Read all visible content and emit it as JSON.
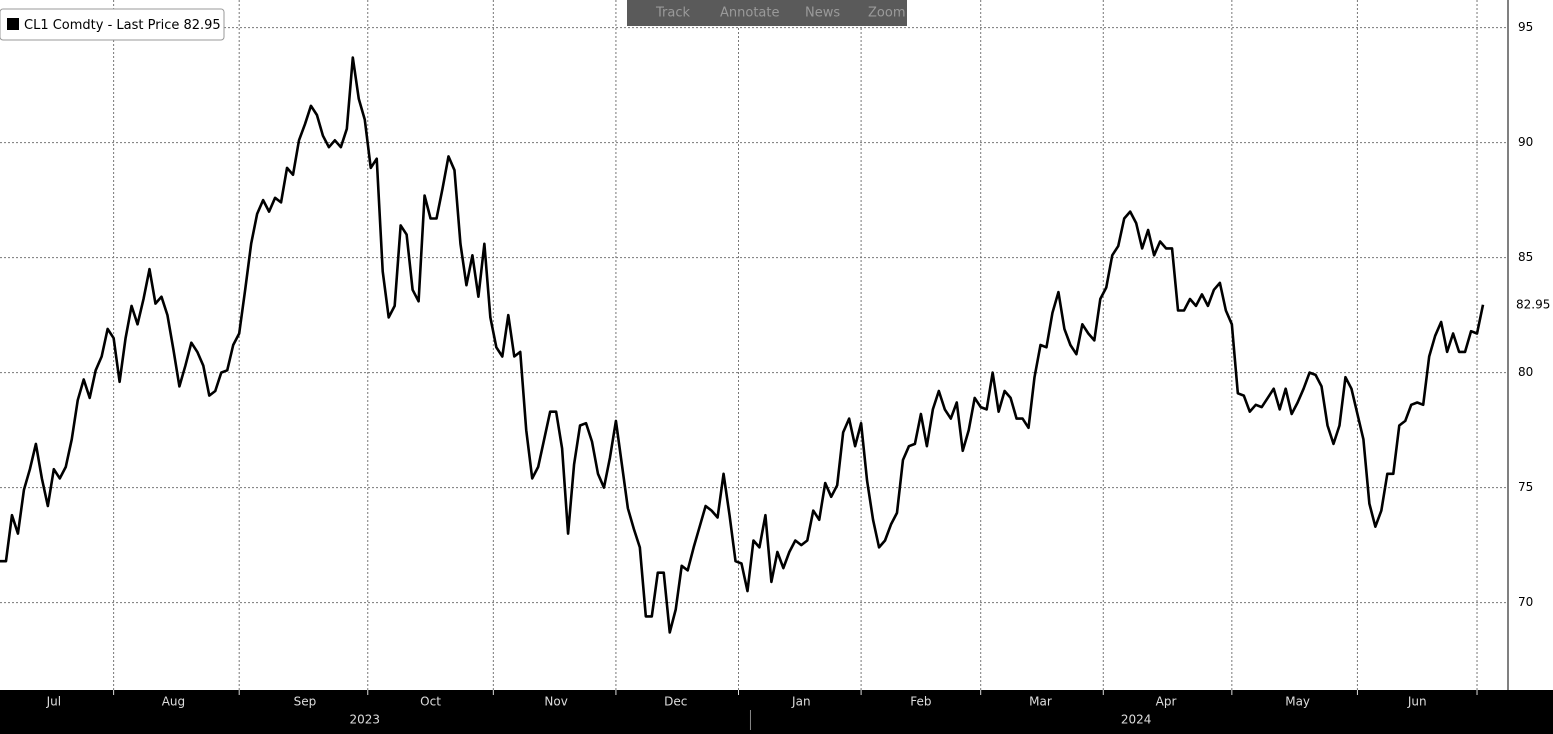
{
  "toolbar": [
    "Track",
    "Annotate",
    "News",
    "Zoom"
  ],
  "chart_data": {
    "type": "line",
    "categories": [
      null,
      null,
      null,
      null,
      null,
      null,
      null,
      null,
      null,
      "Jul",
      null,
      null,
      null,
      null,
      null,
      null,
      null,
      null,
      null,
      null,
      null,
      null,
      null,
      null,
      null,
      null,
      null,
      null,
      null,
      "Aug",
      null,
      null,
      null,
      null,
      null,
      null,
      null,
      null,
      null,
      null,
      null,
      null,
      null,
      null,
      null,
      null,
      null,
      null,
      null,
      null,
      null,
      "Sep",
      null,
      null,
      null,
      null,
      null,
      null,
      null,
      null,
      null,
      null,
      null,
      null,
      null,
      null,
      null,
      null,
      null,
      null,
      null,
      null,
      "Oct",
      null,
      null,
      null,
      null,
      null,
      null,
      null,
      null,
      null,
      null,
      null,
      null,
      null,
      null,
      null,
      null,
      null,
      null,
      null,
      null,
      "Nov",
      null,
      null,
      null,
      null,
      null,
      null,
      null,
      null,
      null,
      null,
      null,
      null,
      null,
      null,
      null,
      null,
      null,
      null,
      null,
      "Dec",
      null,
      null,
      null,
      null,
      null,
      null,
      null,
      null,
      null,
      null,
      null,
      null,
      null,
      null,
      null,
      null,
      null,
      null,
      null,
      null,
      "Jan",
      null,
      null,
      null,
      null,
      null,
      null,
      null,
      null,
      null,
      null,
      null,
      null,
      null,
      null,
      null,
      null,
      null,
      null,
      null,
      "Feb",
      null,
      null,
      null,
      null,
      null,
      null,
      null,
      null,
      null,
      null,
      null,
      null,
      null,
      null,
      null,
      null,
      null,
      null,
      null,
      "Mar",
      null,
      null,
      null,
      null,
      null,
      null,
      null,
      null,
      null,
      null,
      null,
      null,
      null,
      null,
      null,
      null,
      null,
      null,
      null,
      null,
      "Apr",
      null,
      null,
      null,
      null,
      null,
      null,
      null,
      null,
      null,
      null,
      null,
      null,
      null,
      null,
      null,
      null,
      null,
      null,
      null,
      null,
      null,
      "May",
      null,
      null,
      null,
      null,
      null,
      null,
      null,
      null,
      null,
      null,
      null,
      null,
      null,
      null,
      null,
      null,
      null,
      null,
      null,
      "Jun",
      null,
      null,
      null,
      null,
      null,
      null,
      null,
      null,
      null,
      null,
      null
    ],
    "years": [
      null,
      null,
      null,
      null,
      null,
      null,
      null,
      null,
      null,
      null,
      null,
      null,
      null,
      null,
      null,
      null,
      null,
      null,
      null,
      null,
      null,
      null,
      null,
      null,
      null,
      null,
      null,
      null,
      null,
      null,
      null,
      null,
      null,
      null,
      null,
      null,
      null,
      null,
      null,
      null,
      null,
      null,
      null,
      null,
      null,
      null,
      null,
      null,
      null,
      null,
      null,
      null,
      null,
      null,
      null,
      null,
      null,
      null,
      null,
      null,
      null,
      "2023",
      null,
      null,
      null,
      null,
      null,
      null,
      null,
      null,
      null,
      null,
      null,
      null,
      null,
      null,
      null,
      null,
      null,
      null,
      null,
      null,
      null,
      null,
      null,
      null,
      null,
      null,
      null,
      null,
      null,
      null,
      null,
      null,
      null,
      null,
      null,
      null,
      null,
      null,
      null,
      null,
      null,
      null,
      null,
      null,
      null,
      null,
      null,
      null,
      null,
      null,
      null,
      null,
      null,
      null,
      null,
      null,
      null,
      null,
      null,
      null,
      null,
      null,
      null,
      null,
      null,
      null,
      null,
      null,
      null,
      null,
      null,
      null,
      null,
      null,
      null,
      null,
      null,
      null,
      null,
      null,
      null,
      null,
      null,
      null,
      null,
      null,
      null,
      null,
      null,
      null,
      null,
      null,
      null,
      null,
      null,
      null,
      null,
      null,
      null,
      null,
      null,
      null,
      null,
      null,
      null,
      null,
      null,
      null,
      null,
      null,
      null,
      null,
      null,
      null,
      null,
      null,
      null,
      null,
      null,
      null,
      null,
      null,
      null,
      null,
      null,
      null,
      null,
      null,
      "2024",
      null,
      null,
      null,
      null,
      null,
      null,
      null,
      null,
      null,
      null,
      null,
      null,
      null,
      null,
      null,
      null,
      null,
      null,
      null,
      null,
      null,
      null,
      null,
      null,
      null,
      null,
      null,
      null,
      null,
      null,
      null,
      null,
      null,
      null,
      null,
      null,
      null,
      null,
      null,
      null,
      null,
      null,
      null,
      null,
      null,
      null,
      null,
      null,
      null,
      null,
      null,
      null,
      null,
      null,
      null,
      null,
      null,
      null,
      null,
      null,
      null
    ],
    "series": [
      {
        "name": "CL1 Comdty - Last Price",
        "color": "#000000",
        "values": [
          71.8,
          71.8,
          73.8,
          73.0,
          74.9,
          75.8,
          76.9,
          75.4,
          74.2,
          75.8,
          75.4,
          75.9,
          77.1,
          78.8,
          79.7,
          78.9,
          80.1,
          80.7,
          81.9,
          81.5,
          79.6,
          81.5,
          82.9,
          82.1,
          83.2,
          84.5,
          83.0,
          83.3,
          82.5,
          81.0,
          79.4,
          80.3,
          81.3,
          80.9,
          80.3,
          79.0,
          79.2,
          80.0,
          80.1,
          81.2,
          81.7,
          83.6,
          85.6,
          86.9,
          87.5,
          87.0,
          87.6,
          87.4,
          88.9,
          88.6,
          90.1,
          90.8,
          91.6,
          91.2,
          90.3,
          89.8,
          90.1,
          89.8,
          90.6,
          93.7,
          91.9,
          91.0,
          88.9,
          89.3,
          84.4,
          82.4,
          82.9,
          86.4,
          86.0,
          83.6,
          83.1,
          87.7,
          86.7,
          86.7,
          88.0,
          89.4,
          88.8,
          85.6,
          83.8,
          85.1,
          83.3,
          85.6,
          82.4,
          81.1,
          80.7,
          82.5,
          80.7,
          80.9,
          77.5,
          75.4,
          75.9,
          77.1,
          78.3,
          78.3,
          76.7,
          73.0,
          76.0,
          77.7,
          77.8,
          77.0,
          75.6,
          75.0,
          76.3,
          77.9,
          76.0,
          74.1,
          73.2,
          72.4,
          69.4,
          69.4,
          71.3,
          71.3,
          68.7,
          69.7,
          71.6,
          71.4,
          72.4,
          73.3,
          74.2,
          74.0,
          73.7,
          75.6,
          73.8,
          71.8,
          71.7,
          70.5,
          72.7,
          72.4,
          73.8,
          70.9,
          72.2,
          71.5,
          72.2,
          72.7,
          72.5,
          72.7,
          74.0,
          73.6,
          75.2,
          74.6,
          75.1,
          77.4,
          78.0,
          76.8,
          77.8,
          75.3,
          73.6,
          72.4,
          72.7,
          73.4,
          73.9,
          76.2,
          76.8,
          76.9,
          78.2,
          76.8,
          78.4,
          79.2,
          78.4,
          78.0,
          78.7,
          76.6,
          77.5,
          78.9,
          78.5,
          78.4,
          80.0,
          78.3,
          79.2,
          78.9,
          78.0,
          78.0,
          77.6,
          79.8,
          81.2,
          81.1,
          82.6,
          83.5,
          81.9,
          81.2,
          80.8,
          82.1,
          81.7,
          81.4,
          83.2,
          83.7,
          85.1,
          85.5,
          86.7,
          87.0,
          86.5,
          85.4,
          86.2,
          85.1,
          85.7,
          85.4,
          85.4,
          82.7,
          82.7,
          83.2,
          82.9,
          83.4,
          82.9,
          83.6,
          83.9,
          82.7,
          82.1,
          79.1,
          79.0,
          78.3,
          78.6,
          78.5,
          78.9,
          79.3,
          78.4,
          79.3,
          78.2,
          78.7,
          79.3,
          80.0,
          79.9,
          79.4,
          77.7,
          76.9,
          77.7,
          79.8,
          79.3,
          78.2,
          77.1,
          74.3,
          73.3,
          74.0,
          75.6,
          75.6,
          77.7,
          77.9,
          78.6,
          78.7,
          78.6,
          80.7,
          81.6,
          82.2,
          80.9,
          81.7,
          80.9,
          80.9,
          81.8,
          81.7,
          82.95
        ]
      }
    ],
    "ylim": [
      66.2,
      96.2
    ],
    "yticks": [
      70,
      75,
      80,
      85,
      90,
      95
    ],
    "grid": true
  }
}
